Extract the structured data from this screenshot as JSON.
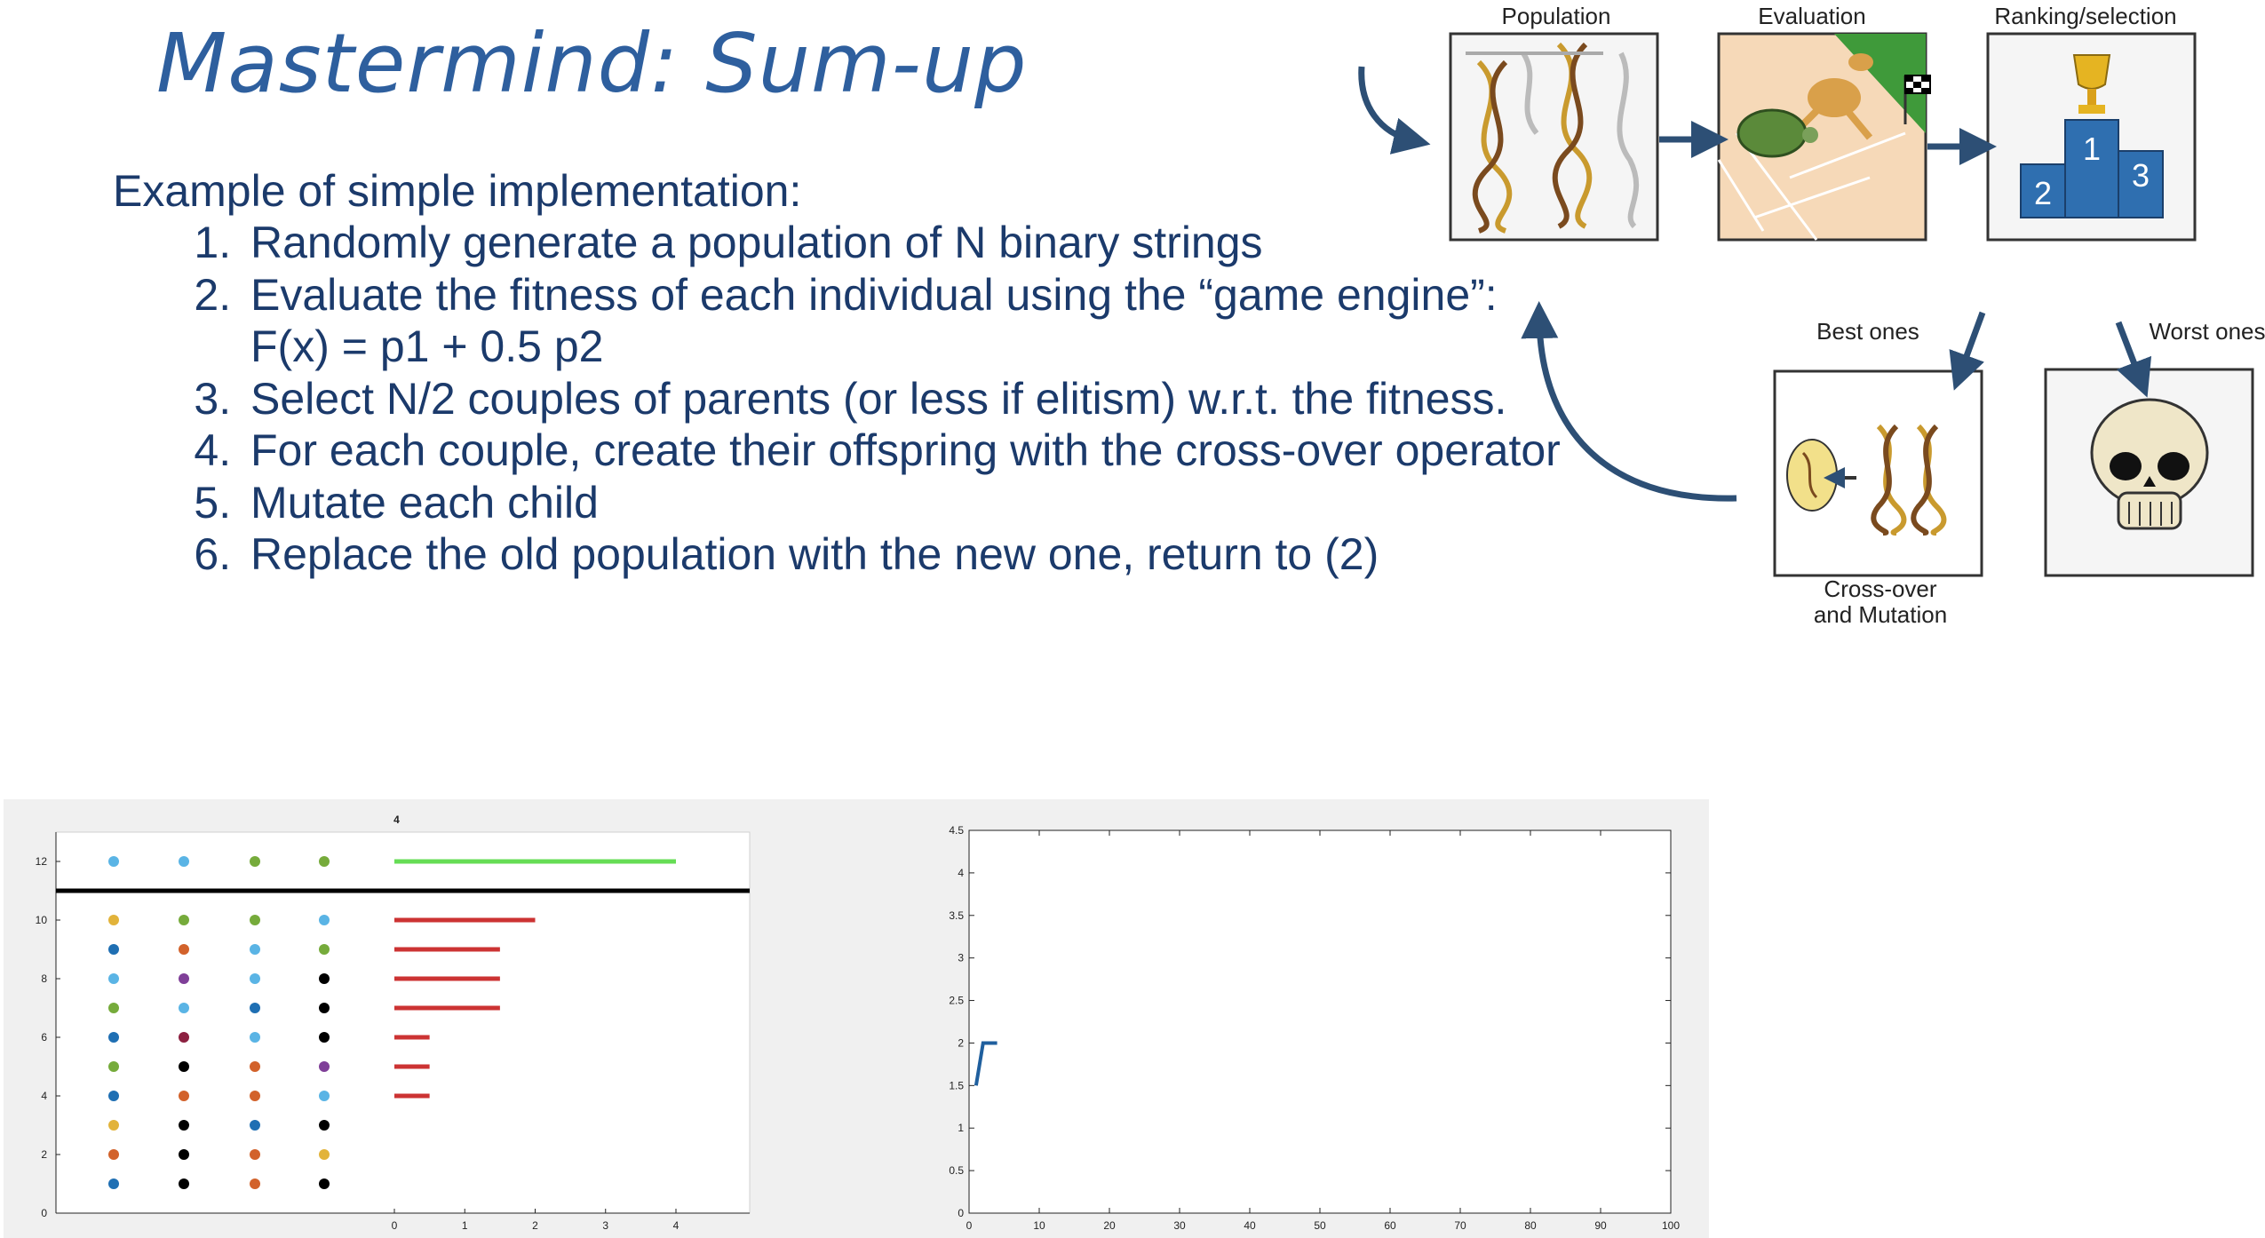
{
  "slide": {
    "title": "Mastermind: Sum-up",
    "intro": "Example of simple implementation:",
    "steps": [
      "Randomly generate a population of N binary strings",
      "Evaluate the fitness of each individual using the “game engine”: F(x) = p1 + 0.5 p2",
      "Select N/2 couples of parents (or less if elitism) w.r.t. the fitness.",
      "For each couple, create their offspring with the cross-over operator",
      "Mutate each child",
      "Replace the old population with the new one, return to (2)"
    ]
  },
  "diagram": {
    "population_label": "Population",
    "evaluation_label": "Evaluation",
    "ranking_label": "Ranking/selection",
    "best_label": "Best ones",
    "worst_label": "Worst ones",
    "crossover_label_line1": "Cross-over",
    "crossover_label_line2": "and Mutation",
    "podium_places": [
      "1",
      "2",
      "3"
    ],
    "colors": {
      "arrow": "#2d4f75",
      "box_border": "#333333"
    },
    "icons": [
      "dna-icon",
      "kangaroo-icon",
      "turtle-icon",
      "checkered-flag-icon",
      "trophy-icon",
      "podium-icon",
      "egg-icon",
      "skull-icon"
    ]
  },
  "chart_data": [
    {
      "type": "scatter",
      "title": "4",
      "xlim": [
        0,
        5
      ],
      "ylim": [
        0,
        13
      ],
      "xticks": [
        0,
        1,
        2,
        3,
        4
      ],
      "yticks": [
        0,
        2,
        4,
        6,
        8,
        10,
        12
      ],
      "peg_columns": 4,
      "separator_y": 11,
      "solution": {
        "y": 12,
        "pegs": [
          "sky",
          "sky",
          "green",
          "green"
        ],
        "bar": 4,
        "bar_color": "#66dd55"
      },
      "guesses": [
        {
          "y": 10,
          "pegs": [
            "yellow",
            "green",
            "green",
            "sky"
          ],
          "bar": 2
        },
        {
          "y": 9,
          "pegs": [
            "blue",
            "orange",
            "sky",
            "green"
          ],
          "bar": 1.5
        },
        {
          "y": 8,
          "pegs": [
            "sky",
            "purple",
            "sky",
            "black"
          ],
          "bar": 1.5
        },
        {
          "y": 7,
          "pegs": [
            "green",
            "sky",
            "blue",
            "black"
          ],
          "bar": 1.5
        },
        {
          "y": 6,
          "pegs": [
            "blue",
            "maroon",
            "sky",
            "black"
          ],
          "bar": 0.5
        },
        {
          "y": 5,
          "pegs": [
            "green",
            "black",
            "orange",
            "purple"
          ],
          "bar": 0.5
        },
        {
          "y": 4,
          "pegs": [
            "blue",
            "orange",
            "orange",
            "sky"
          ],
          "bar": 0.5
        },
        {
          "y": 3,
          "pegs": [
            "yellow",
            "black",
            "blue",
            "black"
          ],
          "bar": null
        },
        {
          "y": 2,
          "pegs": [
            "orange",
            "black",
            "orange",
            "yellow"
          ],
          "bar": null
        },
        {
          "y": 1,
          "pegs": [
            "blue",
            "black",
            "orange",
            "black"
          ],
          "bar": null
        }
      ],
      "bar_color": "#cc3333",
      "peg_colors": {
        "sky": "#5ab4e5",
        "green": "#76ab3b",
        "yellow": "#e2b33a",
        "blue": "#1f6fb3",
        "orange": "#d2622b",
        "purple": "#7f3f98",
        "black": "#000000",
        "maroon": "#8c2040"
      }
    },
    {
      "type": "line",
      "title": "",
      "xlim": [
        0,
        100
      ],
      "ylim": [
        0,
        4.5
      ],
      "xticks": [
        0,
        10,
        20,
        30,
        40,
        50,
        60,
        70,
        80,
        90,
        100
      ],
      "yticks": [
        0,
        0.5,
        1,
        1.5,
        2,
        2.5,
        3,
        3.5,
        4,
        4.5
      ],
      "series": [
        {
          "x": [
            1,
            2,
            4
          ],
          "y": [
            1.5,
            2,
            2
          ],
          "color": "#1f5f9e"
        }
      ]
    }
  ]
}
